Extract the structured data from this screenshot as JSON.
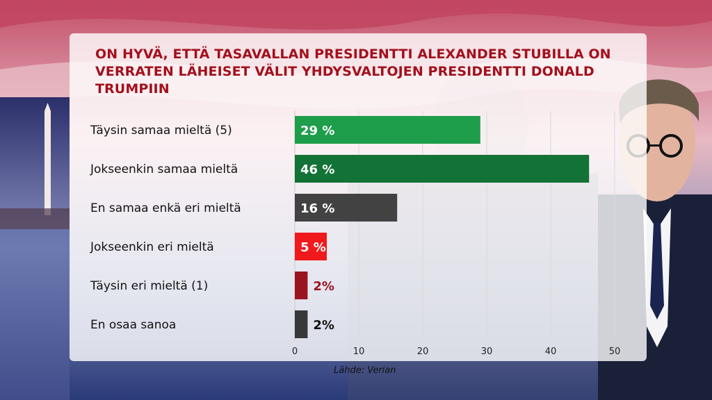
{
  "chart_data": {
    "type": "bar",
    "orientation": "horizontal",
    "title": "ON HYVÄ, ETTÄ TASAVALLAN PRESIDENTTI ALEXANDER STUBILLA ON VERRATEN LÄHEISET VÄLIT YHDYSVALTOJEN PRESIDENTTI DONALD TRUMPIIN",
    "categories": [
      "Täysin samaa mieltä (5)",
      "Jokseenkin samaa mieltä",
      "En samaa enkä eri mieltä",
      "Jokseenkin eri mieltä",
      "Täysin eri mieltä (1)",
      "En osaa sanoa"
    ],
    "values": [
      29,
      46,
      16,
      5,
      2,
      2
    ],
    "value_labels": [
      "29 %",
      "46 %",
      "16 %",
      "5 %",
      "2%",
      "2%"
    ],
    "bar_colors": [
      "#1e9d4a",
      "#137235",
      "#424242",
      "#f0191c",
      "#9a1420",
      "#383838"
    ],
    "label_colors": [
      "#ffffff",
      "#ffffff",
      "#ffffff",
      "#ffffff",
      "#9a1420",
      "#111111"
    ],
    "xlim": [
      0,
      50
    ],
    "xticks": [
      0,
      10,
      20,
      30,
      40,
      50
    ],
    "xlabel": "",
    "ylabel": "",
    "source": "Lähde: Verian"
  }
}
